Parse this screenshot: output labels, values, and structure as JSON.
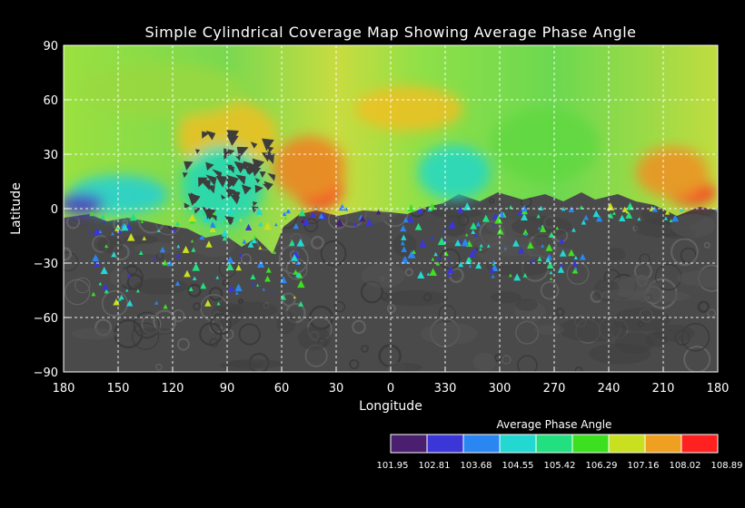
{
  "title": "Simple Cylindrical Coverage Map Showing Average Phase Angle",
  "x_axis": {
    "label": "Longitude",
    "ticks": [
      "180",
      "150",
      "120",
      "90",
      "60",
      "30",
      "0",
      "330",
      "300",
      "270",
      "240",
      "210",
      "180"
    ]
  },
  "y_axis": {
    "label": "Latitude",
    "ticks": [
      "90",
      "60",
      "30",
      "0",
      "−30",
      "−60",
      "−90"
    ],
    "range": [
      -90,
      90
    ]
  },
  "grid": true,
  "map": {
    "projection": "simple cylindrical",
    "basemap": "grayscale surface mosaic",
    "coverage_overlay": "average phase angle colour-coded"
  },
  "colorbar": {
    "title": "Average Phase Angle",
    "tick_labels": [
      "101.95",
      "102.81",
      "103.68",
      "104.55",
      "105.42",
      "106.29",
      "107.16",
      "108.02",
      "108.89"
    ],
    "colors": [
      "#4b1f70",
      "#3a36d8",
      "#2a86f0",
      "#22d8d0",
      "#22e080",
      "#3de020",
      "#c8e020",
      "#f0a020",
      "#ff2020"
    ]
  }
}
